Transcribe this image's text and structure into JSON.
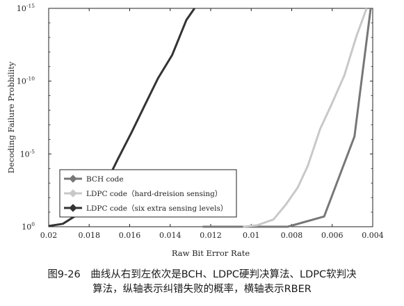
{
  "chart_data": {
    "type": "line",
    "xlabel": "Raw Bit Error Rate",
    "ylabel": "Decoding Failure Probbility",
    "xlim": [
      0.02,
      0.004
    ],
    "ylim_exp": [
      -15,
      0
    ],
    "yscale": "log",
    "x_ticks": [
      "0.02",
      "0.018",
      "0.016",
      "0.014",
      "0.012",
      "0.01",
      "0.008",
      "0.006",
      "0.004"
    ],
    "x_tick_values": [
      0.02,
      0.018,
      0.016,
      0.014,
      0.012,
      0.01,
      0.008,
      0.006,
      0.004
    ],
    "y_ticks": [
      {
        "base": "10",
        "exp": "0",
        "value_exp": 0
      },
      {
        "base": "10",
        "exp": "-5",
        "value_exp": -5
      },
      {
        "base": "10",
        "exp": "-10",
        "value_exp": -10
      },
      {
        "base": "10",
        "exp": "-15",
        "value_exp": -15
      }
    ],
    "legend_position": "lower-left",
    "series": [
      {
        "name": "BCH code",
        "color": "#777777",
        "marker": "diamond",
        "x": [
          0.0124,
          0.0104,
          0.0082,
          0.0064,
          0.0049,
          0.0041
        ],
        "log10_y": [
          0,
          0,
          0,
          -0.7,
          -6.2,
          -15
        ]
      },
      {
        "name": "LDPC code（hard-dreision sensing）",
        "color": "#c8c8c8",
        "marker": "diamond",
        "x": [
          0.0104,
          0.0097,
          0.0089,
          0.0083,
          0.0077,
          0.0072,
          0.0066,
          0.006,
          0.0054,
          0.0048,
          0.0043
        ],
        "log10_y": [
          0,
          -0.1,
          -0.5,
          -1.5,
          -2.7,
          -4.2,
          -6.7,
          -8.5,
          -10.4,
          -13.1,
          -15
        ]
      },
      {
        "name": "LDPC code（six extra sensing levels）",
        "color": "#333333",
        "marker": "diamond",
        "x": [
          0.02,
          0.0193,
          0.0185,
          0.0178,
          0.0172,
          0.0166,
          0.0159,
          0.0152,
          0.0146,
          0.0139,
          0.0132,
          0.0128
        ],
        "log10_y": [
          -0.05,
          -0.2,
          -0.9,
          -1.9,
          -2.9,
          -4.6,
          -6.5,
          -8.5,
          -10.2,
          -11.8,
          -14.2,
          -15
        ]
      }
    ]
  },
  "caption": {
    "line1": "图9-26　曲线从右到左依次是BCH、LDPC硬判决算法、LDPC软判决",
    "line2": "算法，纵轴表示纠错失败的概率，横轴表示RBER"
  }
}
